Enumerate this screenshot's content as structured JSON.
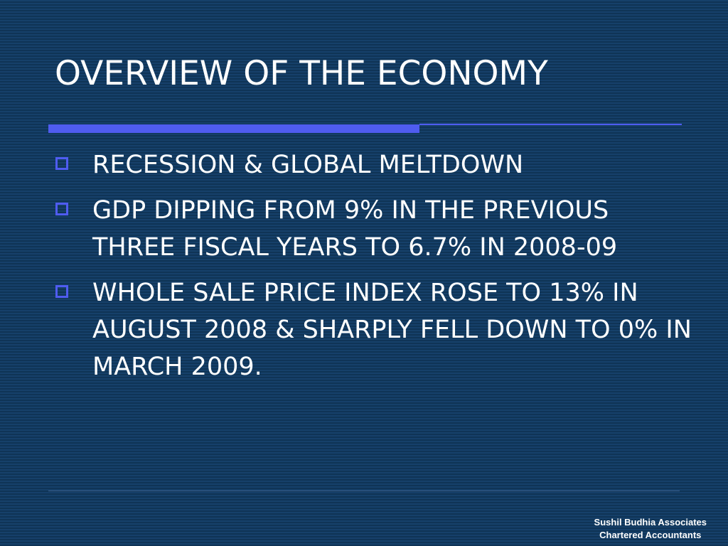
{
  "slide": {
    "title": "OVERVIEW OF THE ECONOMY",
    "bullets": [
      "RECESSION & GLOBAL MELTDOWN",
      "GDP DIPPING FROM 9% IN THE PREVIOUS THREE FISCAL YEARS TO 6.7% IN 2008-09",
      "WHOLE SALE PRICE INDEX ROSE TO 13% IN AUGUST 2008 &  SHARPLY FELL DOWN TO 0% IN MARCH 2009."
    ]
  },
  "footer": {
    "line1": "Sushil Budhia Associates",
    "line2": "Chartered Accountants"
  },
  "colors": {
    "background": "#123a60",
    "accent": "#4f5cf0",
    "text": "#ffffff"
  }
}
